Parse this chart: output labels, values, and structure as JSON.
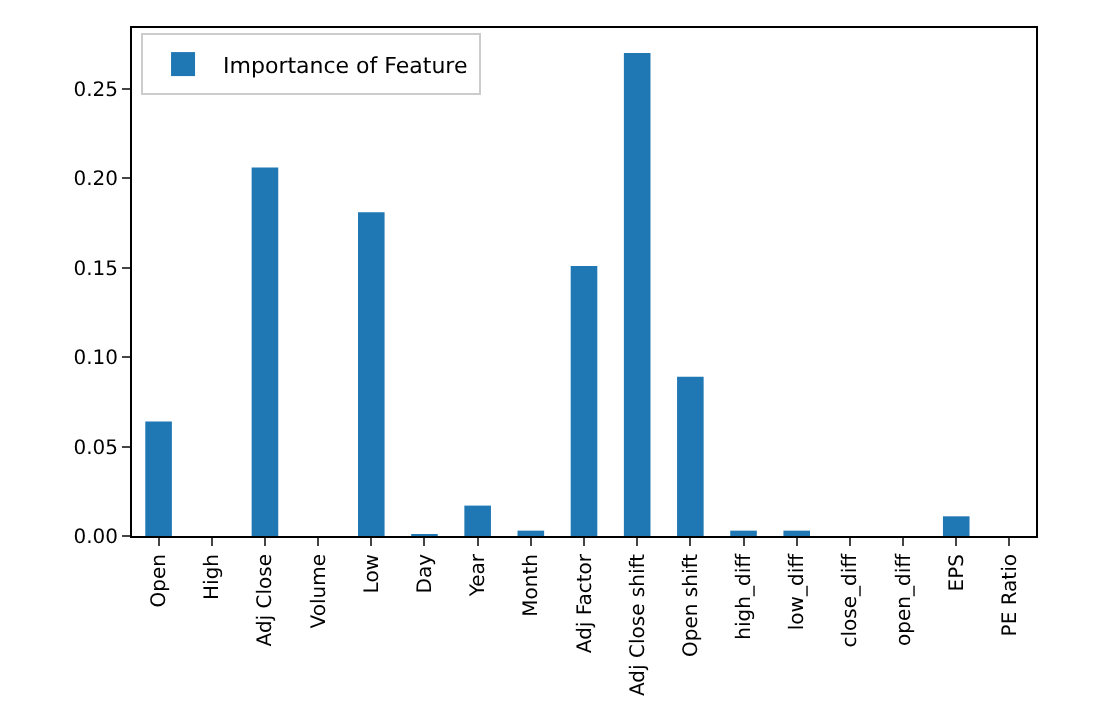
{
  "chart_data": {
    "type": "bar",
    "categories": [
      "Open",
      "High",
      "Adj Close",
      "Volume",
      "Low",
      "Day",
      "Year",
      "Month",
      "Adj Factor",
      "Adj Close shift",
      "Open shift",
      "high_diff",
      "low_diff",
      "close_diff",
      "open_diff",
      "EPS",
      "PE Ratio"
    ],
    "series": [
      {
        "name": "Importance of Feature",
        "color": "#1f77b4",
        "values": [
          0.064,
          0,
          0.206,
          0,
          0.181,
          0.001,
          0.017,
          0.003,
          0.151,
          0.27,
          0.089,
          0.003,
          0.003,
          0,
          0,
          0.011,
          0
        ]
      }
    ],
    "ylim": [
      0,
      0.284
    ],
    "yticks": [
      {
        "value": 0,
        "label": "0.00"
      },
      {
        "value": 0.05,
        "label": "0.05"
      },
      {
        "value": 0.1,
        "label": "0.10"
      },
      {
        "value": 0.15,
        "label": "0.15"
      },
      {
        "value": 0.2,
        "label": "0.20"
      },
      {
        "value": 0.25,
        "label": "0.25"
      }
    ],
    "grid": false,
    "legend": "top left"
  }
}
